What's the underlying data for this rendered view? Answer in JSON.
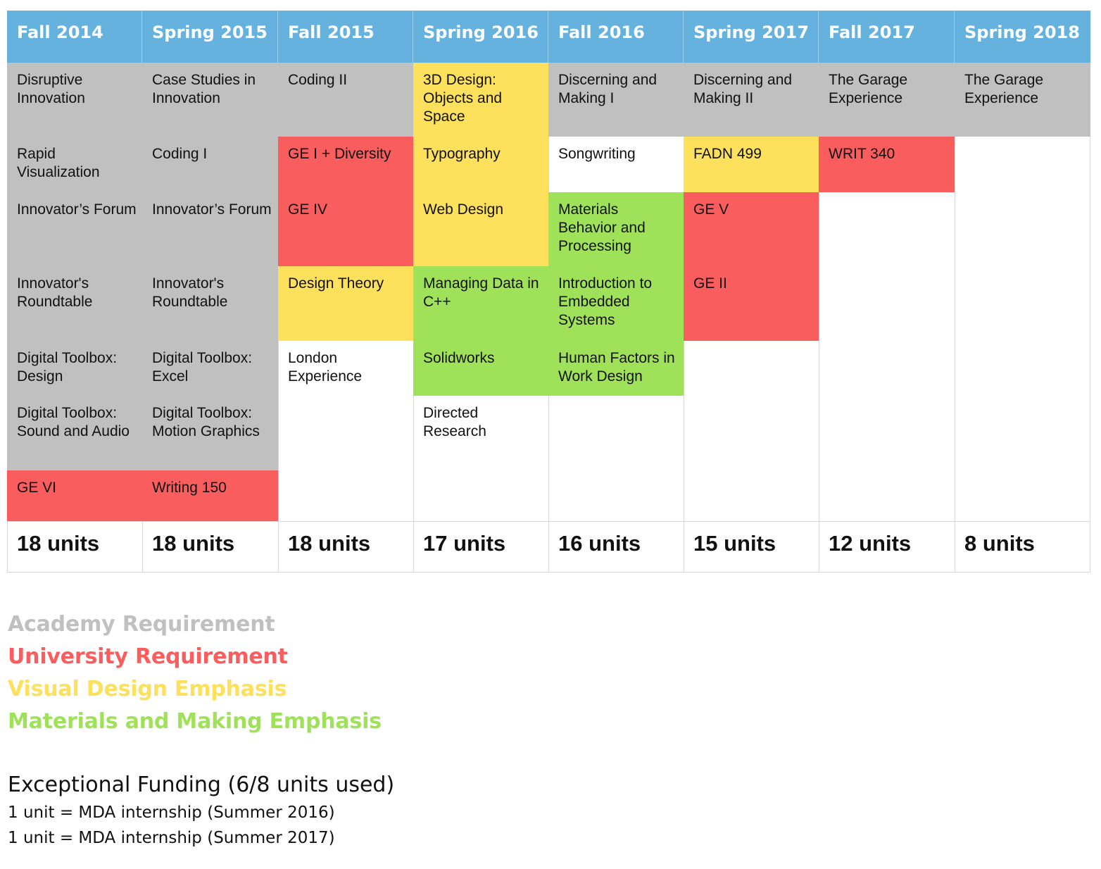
{
  "semesters": [
    "Fall 2014",
    "Spring 2015",
    "Fall 2015",
    "Spring 2016",
    "Fall 2016",
    "Spring 2017",
    "Fall 2017",
    "Spring 2018"
  ],
  "category_colors": {
    "academy": "#c0c0c0",
    "university": "#fa5d5d",
    "visual": "#fde05b",
    "materials": "#9fe259",
    "header": "#66b2de"
  },
  "courses": [
    {
      "semester": "Fall 2014",
      "title": "Disruptive Innovation",
      "category": "academy"
    },
    {
      "semester": "Fall 2014",
      "title": "Rapid Visualization",
      "category": "academy"
    },
    {
      "semester": "Fall 2014",
      "title": "Innovator’s Forum",
      "category": "academy"
    },
    {
      "semester": "Fall 2014",
      "title": "Innovator's Roundtable",
      "category": "academy"
    },
    {
      "semester": "Fall 2014",
      "title": "Digital Toolbox: Design",
      "category": "academy"
    },
    {
      "semester": "Fall 2014",
      "title": "Digital Toolbox: Sound and Audio",
      "category": "academy"
    },
    {
      "semester": "Fall 2014",
      "title": "GE VI",
      "category": "university"
    },
    {
      "semester": "Spring 2015",
      "title": "Case Studies in Innovation",
      "category": "academy"
    },
    {
      "semester": "Spring 2015",
      "title": "Coding I",
      "category": "academy"
    },
    {
      "semester": "Spring 2015",
      "title": "Innovator’s Forum",
      "category": "academy"
    },
    {
      "semester": "Spring 2015",
      "title": "Innovator's Roundtable",
      "category": "academy"
    },
    {
      "semester": "Spring 2015",
      "title": "Digital Toolbox: Excel",
      "category": "academy"
    },
    {
      "semester": "Spring 2015",
      "title": "Digital Toolbox: Motion Graphics",
      "category": "academy"
    },
    {
      "semester": "Spring 2015",
      "title": "Writing 150",
      "category": "university"
    },
    {
      "semester": "Fall 2015",
      "title": "Coding II",
      "category": "academy"
    },
    {
      "semester": "Fall 2015",
      "title": "GE I + Diversity",
      "category": "university"
    },
    {
      "semester": "Fall 2015",
      "title": "GE IV",
      "category": "university"
    },
    {
      "semester": "Fall 2015",
      "title": "Design Theory",
      "category": "visual"
    },
    {
      "semester": "Fall 2015",
      "title": "London Experience",
      "category": "none"
    },
    {
      "semester": "Spring 2016",
      "title": "3D Design: Objects and Space",
      "category": "visual"
    },
    {
      "semester": "Spring 2016",
      "title": "Typography",
      "category": "visual"
    },
    {
      "semester": "Spring 2016",
      "title": "Web Design",
      "category": "visual"
    },
    {
      "semester": "Spring 2016",
      "title": "Managing Data in C++",
      "category": "materials"
    },
    {
      "semester": "Spring 2016",
      "title": "Solidworks",
      "category": "materials"
    },
    {
      "semester": "Spring 2016",
      "title": "Directed Research",
      "category": "none"
    },
    {
      "semester": "Fall 2016",
      "title": "Discerning and Making I",
      "category": "academy"
    },
    {
      "semester": "Fall 2016",
      "title": "Songwriting",
      "category": "none"
    },
    {
      "semester": "Fall 2016",
      "title": "Materials Behavior and Processing",
      "category": "materials"
    },
    {
      "semester": "Fall 2016",
      "title": "Introduction to Embedded Systems",
      "category": "materials"
    },
    {
      "semester": "Fall 2016",
      "title": "Human Factors in Work Design",
      "category": "materials"
    },
    {
      "semester": "Spring 2017",
      "title": "Discerning and Making II",
      "category": "academy"
    },
    {
      "semester": "Spring 2017",
      "title": "FADN 499",
      "category": "visual"
    },
    {
      "semester": "Spring 2017",
      "title": "GE V",
      "category": "university"
    },
    {
      "semester": "Spring 2017",
      "title": "GE II",
      "category": "university"
    },
    {
      "semester": "Fall 2017",
      "title": "The Garage Experience",
      "category": "academy"
    },
    {
      "semester": "Fall 2017",
      "title": "WRIT 340",
      "category": "university"
    },
    {
      "semester": "Spring 2018",
      "title": "The Garage Experience",
      "category": "academy"
    }
  ],
  "units": [
    "18 units",
    "18 units",
    "18 units",
    "17 units",
    "16 units",
    "15 units",
    "12 units",
    "8 units"
  ],
  "legend": [
    {
      "label": "Academy Requirement",
      "category": "academy"
    },
    {
      "label": "University Requirement",
      "category": "university"
    },
    {
      "label": "Visual Design Emphasis",
      "category": "visual"
    },
    {
      "label": "Materials and Making Emphasis",
      "category": "materials"
    }
  ],
  "funding": {
    "title": "Exceptional Funding (6/8 units used)",
    "lines": [
      "1 unit = MDA internship (Summer 2016)",
      "1 unit = MDA internship (Summer 2017)"
    ]
  }
}
